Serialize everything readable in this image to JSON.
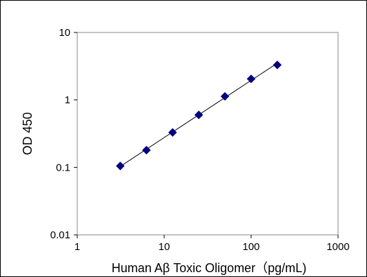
{
  "chart_data": {
    "type": "scatter",
    "xlabel": "Human Aβ Toxic Oligomer（pg/mL)",
    "ylabel": "OD 450",
    "xscale": "log",
    "yscale": "log",
    "xlim": [
      1,
      1000
    ],
    "ylim": [
      0.01,
      10
    ],
    "x_ticks": [
      "1",
      "10",
      "100",
      "1000"
    ],
    "y_ticks": [
      "0.01",
      "0.1",
      "1",
      "10"
    ],
    "grid": false,
    "legend": "none",
    "marker": "diamond",
    "trendline": "power fit",
    "series": [
      {
        "x": [
          3.125,
          6.25,
          12.5,
          25,
          50,
          100,
          200
        ],
        "y": [
          0.105,
          0.18,
          0.33,
          0.6,
          1.13,
          2.05,
          3.3
        ],
        "color": "#000080"
      }
    ]
  }
}
